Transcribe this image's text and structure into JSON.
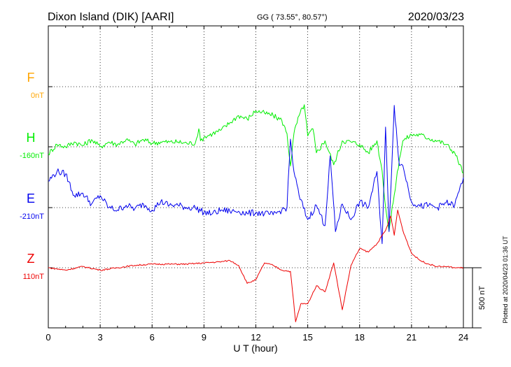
{
  "header": {
    "station": "Dixon Island (DIK)  [AARI]",
    "coords": "GG ( 73.55°,  80.57°)",
    "date": "2020/03/23"
  },
  "chart_data": {
    "type": "line",
    "xlabel": "U T (hour)",
    "xlim": [
      0,
      24
    ],
    "xticks": [
      "0",
      "3",
      "6",
      "9",
      "12",
      "15",
      "18",
      "21",
      "24"
    ],
    "scale_bar_nT": 500,
    "scale_label": "500 nT",
    "grid": "dotted",
    "series": [
      {
        "name": "F",
        "baseline": "0nT",
        "color": "#ffa500",
        "x": [],
        "values": []
      },
      {
        "name": "H",
        "baseline": "-160nT",
        "color": "#00ee00",
        "x": [
          0.0,
          0.5,
          1.0,
          1.5,
          2.0,
          2.5,
          3.0,
          3.5,
          4.0,
          4.5,
          5.0,
          5.5,
          6.0,
          6.5,
          7.0,
          7.5,
          8.0,
          8.5,
          8.7,
          8.8,
          9.0,
          9.5,
          10.0,
          10.5,
          11.0,
          11.5,
          12.0,
          12.5,
          13.0,
          13.5,
          13.8,
          14.0,
          14.2,
          14.5,
          14.8,
          15.0,
          15.3,
          15.5,
          16.0,
          16.5,
          17.0,
          17.5,
          18.0,
          18.5,
          19.0,
          19.3,
          19.5,
          19.7,
          20.0,
          20.3,
          20.5,
          21.0,
          21.5,
          22.0,
          22.5,
          23.0,
          23.5,
          24.0
        ],
        "values": [
          -60,
          20,
          0,
          40,
          10,
          60,
          0,
          40,
          20,
          60,
          20,
          60,
          30,
          40,
          40,
          40,
          30,
          30,
          150,
          50,
          80,
          110,
          140,
          200,
          260,
          230,
          300,
          280,
          260,
          220,
          110,
          -160,
          110,
          260,
          350,
          90,
          150,
          -50,
          50,
          -150,
          50,
          40,
          20,
          -50,
          50,
          -200,
          -500,
          -700,
          -400,
          -100,
          50,
          100,
          100,
          70,
          50,
          20,
          -50,
          -220
        ]
      },
      {
        "name": "E",
        "baseline": "-210nT",
        "color": "#0000ee",
        "x": [
          0.0,
          0.5,
          1.0,
          1.5,
          2.0,
          2.5,
          3.0,
          3.5,
          4.0,
          4.5,
          5.0,
          5.5,
          6.0,
          6.5,
          7.0,
          7.5,
          8.0,
          8.5,
          9.0,
          9.5,
          10.0,
          10.5,
          11.0,
          11.5,
          12.0,
          12.5,
          13.0,
          13.5,
          13.8,
          14.0,
          14.2,
          14.5,
          15.0,
          15.5,
          16.0,
          16.3,
          16.6,
          17.0,
          17.5,
          18.0,
          18.5,
          19.0,
          19.3,
          19.5,
          19.7,
          20.0,
          20.3,
          20.5,
          21.0,
          21.5,
          22.0,
          22.5,
          23.0,
          23.5,
          24.0
        ],
        "values": [
          220,
          300,
          280,
          100,
          120,
          30,
          100,
          0,
          -20,
          20,
          -10,
          30,
          -20,
          50,
          20,
          20,
          0,
          0,
          -40,
          -50,
          -20,
          -30,
          -30,
          -50,
          -40,
          -50,
          -60,
          -20,
          0,
          570,
          300,
          100,
          -100,
          20,
          -150,
          430,
          -200,
          30,
          -100,
          50,
          0,
          300,
          -300,
          670,
          -200,
          850,
          350,
          350,
          50,
          10,
          20,
          0,
          40,
          20,
          250
        ]
      },
      {
        "name": "Z",
        "baseline": "110nT",
        "color": "#ee0000",
        "x": [
          0.0,
          1.0,
          2.0,
          3.0,
          4.0,
          5.0,
          6.0,
          7.0,
          8.0,
          9.0,
          10.0,
          10.5,
          11.0,
          11.5,
          12.0,
          12.5,
          13.0,
          13.5,
          14.0,
          14.3,
          14.6,
          15.0,
          15.5,
          16.0,
          16.5,
          17.0,
          17.5,
          18.0,
          18.5,
          19.0,
          19.5,
          19.8,
          20.0,
          20.2,
          20.5,
          21.0,
          21.5,
          22.0,
          22.5,
          23.0,
          23.5,
          24.0
        ],
        "values": [
          0,
          -20,
          10,
          -20,
          0,
          20,
          30,
          30,
          30,
          40,
          50,
          60,
          20,
          -130,
          -100,
          40,
          20,
          -20,
          -30,
          -450,
          -300,
          -300,
          -150,
          -200,
          40,
          -350,
          20,
          160,
          130,
          200,
          310,
          430,
          270,
          480,
          310,
          120,
          60,
          30,
          10,
          10,
          0,
          0
        ]
      }
    ]
  },
  "footer": {
    "stamp": "Plotted at 2020/04/23 01:36 UT"
  }
}
